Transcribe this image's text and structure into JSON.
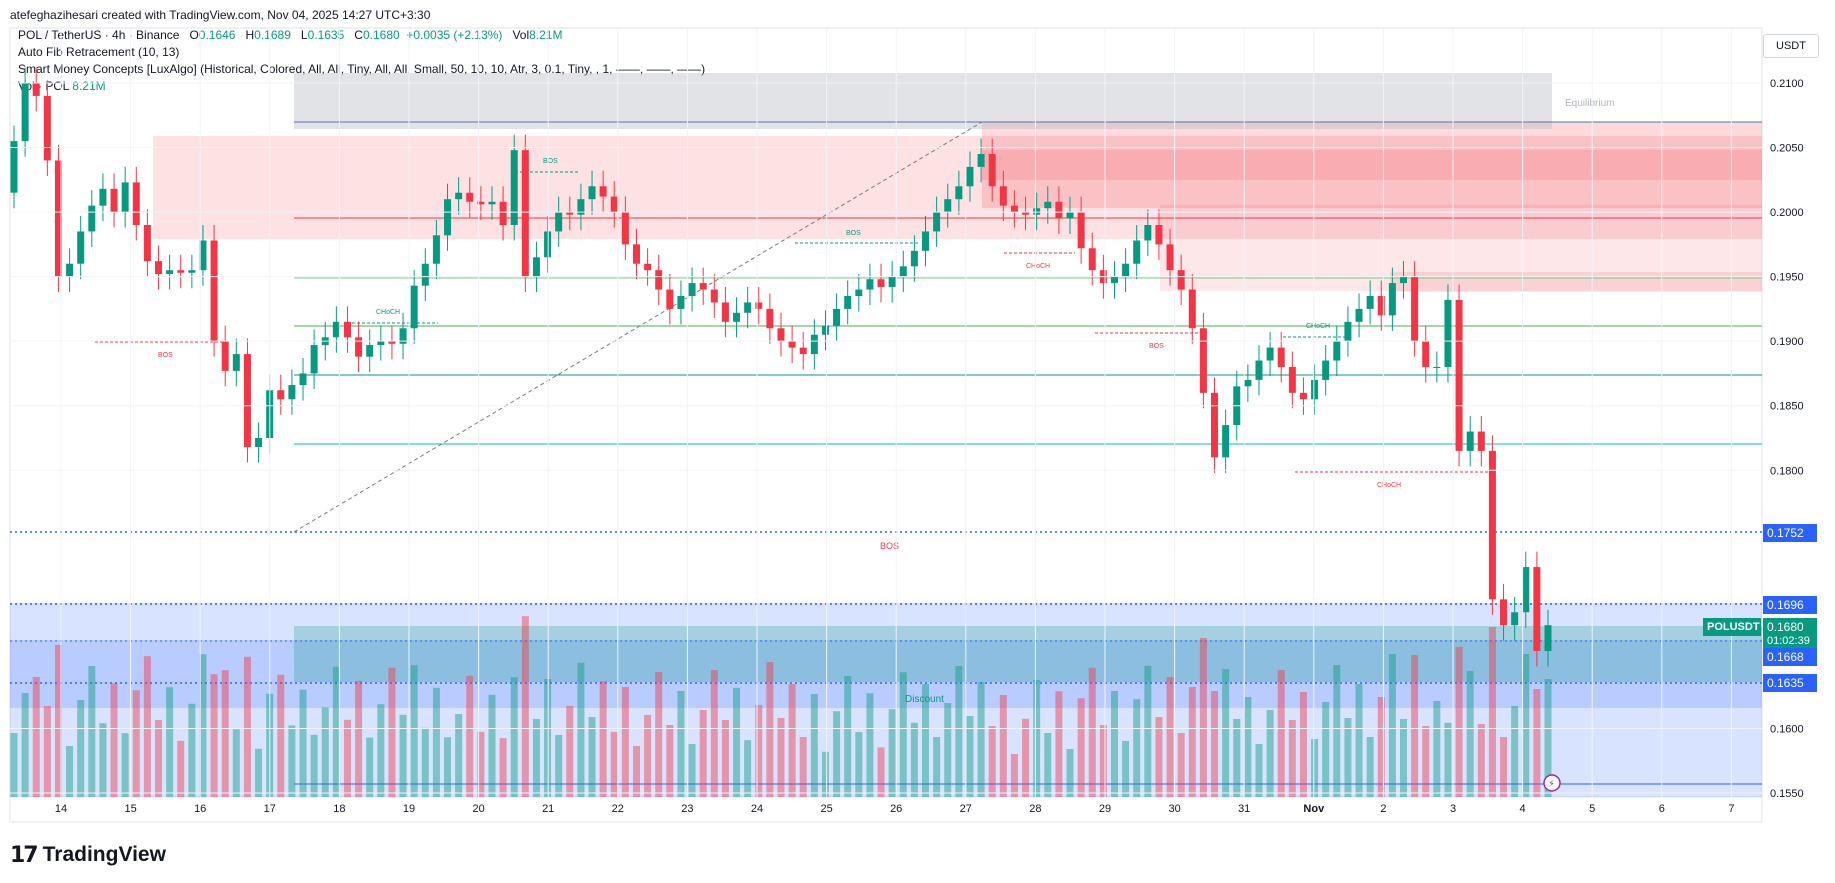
{
  "header": {
    "author_line": "atefeghazihesari created with TradingView.com, Nov 04, 2025 14:27 UTC+3:30"
  },
  "legend": {
    "symbol": "POL / TetherUS · 4h · Binance",
    "o_label": "O",
    "o_val": "0.1646",
    "h_label": "H",
    "h_val": "0.1689",
    "l_label": "L",
    "l_val": "0.1635",
    "c_label": "C",
    "c_val": "0.1680",
    "change": "+0.0035 (+2.13%)",
    "vol_label": "Vol",
    "vol_val": "8.21M",
    "indicator1": "Auto Fib Retracement (10, 13)",
    "indicator2": "Smart Money Concepts [LuxAlgo] (Historical, Colored, All, All, Tiny, All, All, Small, 50, 10, 10, Atr, 3, 0.1, Tiny, , 1, ——, ——, ——)",
    "indicator3_label": "Vol · POL",
    "indicator3_val": "8.21M"
  },
  "currency_button": "USDT",
  "brand": "TradingView",
  "colors": {
    "up": "#089981",
    "down": "#F23645",
    "premium": "#F23645",
    "discount": "#2962FF",
    "equilibrium": "#B2B5BE"
  },
  "price_tags": {
    "level_1752": "0.1752",
    "level_1696": "0.1696",
    "symbol_tag": "POLUSDT",
    "last_price": "0.1680",
    "countdown": "01:02:39",
    "level_1668": "0.1668",
    "level_1635": "0.1635"
  },
  "chart_data": {
    "type": "candlestick",
    "title": "POL / TetherUS · 4h · Binance",
    "x_ticks": [
      "14",
      "15",
      "16",
      "17",
      "18",
      "19",
      "20",
      "21",
      "22",
      "23",
      "24",
      "25",
      "26",
      "27",
      "28",
      "29",
      "30",
      "31",
      "Nov",
      "2",
      "3",
      "4",
      "5",
      "6",
      "7"
    ],
    "y_ticks": [
      "0.2100",
      "0.2050",
      "0.2000",
      "0.1950",
      "0.1900",
      "0.1850",
      "0.1800",
      "0.1600",
      "0.1550"
    ],
    "ylim": [
      0.1545,
      0.2115
    ],
    "annotations": [
      "BOS",
      "CHoCH",
      "BOS",
      "BOS",
      "BOS",
      "CHoCH",
      "BOS",
      "CHoCH",
      "CHoCH",
      "BOS",
      "Equilibrium",
      "Discount"
    ],
    "candles_ohlc": [
      [
        0.2008,
        0.2037,
        0.198,
        0.204
      ],
      [
        0.204,
        0.21,
        0.2028,
        0.2052
      ],
      [
        0.2052,
        0.2115,
        0.2048,
        0.2098
      ],
      [
        0.2098,
        0.2108,
        0.205,
        0.2075
      ],
      [
        0.2075,
        0.209,
        0.2035,
        0.2042
      ],
      [
        0.2042,
        0.205,
        0.1925,
        0.195
      ],
      [
        0.195,
        0.1985,
        0.193,
        0.1958
      ],
      [
        0.1958,
        0.199,
        0.195,
        0.1982
      ],
      [
        0.1982,
        0.2015,
        0.1965,
        0.2003
      ],
      [
        0.2003,
        0.203,
        0.1995,
        0.2017
      ],
      [
        0.2017,
        0.2025,
        0.1995,
        0.2
      ],
      [
        0.2,
        0.203,
        0.1998,
        0.2023
      ],
      [
        0.2023,
        0.2025,
        0.1985,
        0.1992
      ],
      [
        0.1992,
        0.2,
        0.195,
        0.1963
      ],
      [
        0.1963,
        0.197,
        0.1945,
        0.1952
      ],
      [
        0.1952,
        0.1962,
        0.1935,
        0.1955
      ],
      [
        0.1955,
        0.1965,
        0.1948,
        0.1953
      ],
      [
        0.1953,
        0.1962,
        0.1945,
        0.1955
      ],
      [
        0.1955,
        0.1985,
        0.195,
        0.1978
      ],
      [
        0.1978,
        0.199,
        0.1895,
        0.19
      ],
      [
        0.19,
        0.1905,
        0.1865,
        0.1877
      ],
      [
        0.1877,
        0.1895,
        0.186,
        0.189
      ],
      [
        0.189,
        0.1915,
        0.186,
        0.1818
      ],
      [
        0.1818,
        0.192,
        0.1808,
        0.1825
      ],
      [
        0.1825,
        0.1865,
        0.1815,
        0.1862
      ],
      [
        0.1862,
        0.1868,
        0.185,
        0.1855
      ],
      [
        0.1855,
        0.187,
        0.185,
        0.1865
      ],
      [
        0.1865,
        0.188,
        0.186,
        0.1875
      ],
      [
        0.1875,
        0.19,
        0.187,
        0.1897
      ],
      [
        0.1897,
        0.191,
        0.189,
        0.1903
      ],
      [
        0.1903,
        0.1925,
        0.1895,
        0.1915
      ],
      [
        0.1915,
        0.1925,
        0.1895,
        0.1903
      ],
      [
        0.1903,
        0.1905,
        0.1878,
        0.1888
      ],
      [
        0.1888,
        0.1905,
        0.1885,
        0.1897
      ],
      [
        0.1897,
        0.1905,
        0.189,
        0.19
      ],
      [
        0.19,
        0.1908,
        0.1892,
        0.1898
      ],
      [
        0.1898,
        0.1912,
        0.189,
        0.191
      ],
      [
        0.191,
        0.1925,
        0.188,
        0.1943
      ],
      [
        0.1943,
        0.1955,
        0.193,
        0.196
      ],
      [
        0.196,
        0.1985,
        0.1955,
        0.1982
      ],
      [
        0.1982,
        0.2015,
        0.1975,
        0.201
      ],
      [
        0.201,
        0.2025,
        0.2,
        0.2015
      ],
      [
        0.2015,
        0.202,
        0.2003,
        0.2008
      ],
      [
        0.2008,
        0.2015,
        0.1998,
        0.2006
      ],
      [
        0.2006,
        0.2008,
        0.1982,
        0.2008
      ],
      [
        0.2008,
        0.201,
        0.1985,
        0.199
      ],
      [
        0.199,
        0.2012,
        0.1975,
        0.2048
      ],
      [
        0.2048,
        0.205,
        0.1945,
        0.195
      ]
    ],
    "volume_colors": "up/down per candle"
  }
}
